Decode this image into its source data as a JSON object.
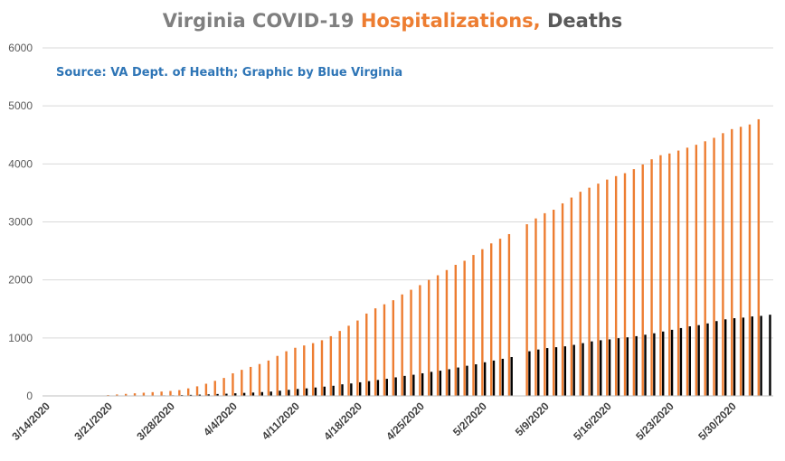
{
  "chart_data": {
    "type": "bar",
    "title_parts": [
      {
        "text": "Virginia COVID-19 ",
        "color": "#7f7f7f"
      },
      {
        "text": "Hospitalizations,",
        "color": "#ed7d31"
      },
      {
        "text": " Deaths",
        "color": "#595959"
      }
    ],
    "subtitle": "Source: VA Dept. of Health; Graphic by Blue Virginia",
    "subtitle_color": "#2e75b6",
    "ylim": [
      0,
      6000
    ],
    "yticks": [
      0,
      1000,
      2000,
      3000,
      4000,
      5000,
      6000
    ],
    "grid": true,
    "legend": "none",
    "x": [
      "3/14/2020",
      "3/15/2020",
      "3/16/2020",
      "3/17/2020",
      "3/18/2020",
      "3/19/2020",
      "3/20/2020",
      "3/21/2020",
      "3/22/2020",
      "3/23/2020",
      "3/24/2020",
      "3/25/2020",
      "3/26/2020",
      "3/27/2020",
      "3/28/2020",
      "3/29/2020",
      "3/30/2020",
      "3/31/2020",
      "4/1/2020",
      "4/2/2020",
      "4/3/2020",
      "4/4/2020",
      "4/5/2020",
      "4/6/2020",
      "4/7/2020",
      "4/8/2020",
      "4/9/2020",
      "4/10/2020",
      "4/11/2020",
      "4/12/2020",
      "4/13/2020",
      "4/14/2020",
      "4/15/2020",
      "4/16/2020",
      "4/17/2020",
      "4/18/2020",
      "4/19/2020",
      "4/20/2020",
      "4/21/2020",
      "4/22/2020",
      "4/23/2020",
      "4/24/2020",
      "4/25/2020",
      "4/26/2020",
      "4/27/2020",
      "4/28/2020",
      "4/29/2020",
      "4/30/2020",
      "5/1/2020",
      "5/2/2020",
      "5/3/2020",
      "5/4/2020",
      "5/5/2020",
      "5/6/2020",
      "5/7/2020",
      "5/8/2020",
      "5/9/2020",
      "5/10/2020",
      "5/11/2020",
      "5/12/2020",
      "5/13/2020",
      "5/14/2020",
      "5/15/2020",
      "5/16/2020",
      "5/17/2020",
      "5/18/2020",
      "5/19/2020",
      "5/20/2020",
      "5/21/2020",
      "5/22/2020",
      "5/23/2020",
      "5/24/2020",
      "5/25/2020",
      "5/26/2020",
      "5/27/2020",
      "5/28/2020",
      "5/29/2020",
      "5/30/2020",
      "5/31/2020",
      "6/1/2020",
      "6/2/2020",
      "6/3/2020"
    ],
    "xtick_labels": [
      "3/14/2020",
      "3/21/2020",
      "3/28/2020",
      "4/4/2020",
      "4/11/2020",
      "4/18/2020",
      "4/25/2020",
      "5/2/2020",
      "5/9/2020",
      "5/16/2020",
      "5/23/2020",
      "5/30/2020"
    ],
    "series": [
      {
        "color": "#ed7d31",
        "values": [
          null,
          null,
          null,
          null,
          null,
          null,
          null,
          15,
          25,
          35,
          45,
          55,
          65,
          75,
          85,
          100,
          130,
          165,
          210,
          260,
          310,
          390,
          450,
          500,
          550,
          610,
          690,
          770,
          830,
          870,
          910,
          960,
          1030,
          1120,
          1210,
          1300,
          1420,
          1510,
          1580,
          1650,
          1750,
          1830,
          1910,
          2000,
          2080,
          2170,
          2260,
          2330,
          2430,
          2530,
          2630,
          2710,
          2790,
          null,
          2960,
          3060,
          3150,
          3210,
          3320,
          3420,
          3520,
          3590,
          3660,
          3730,
          3790,
          3840,
          3910,
          3990,
          4080,
          4150,
          4180,
          4230,
          4280,
          4330,
          4390,
          4450,
          4530,
          4600,
          4640,
          4680,
          4770,
          null
        ]
      },
      {
        "color": "#000000",
        "values": [
          null,
          null,
          null,
          null,
          null,
          null,
          null,
          2,
          2,
          3,
          3,
          5,
          7,
          9,
          10,
          14,
          18,
          22,
          27,
          33,
          38,
          45,
          52,
          58,
          66,
          75,
          90,
          105,
          120,
          130,
          145,
          160,
          175,
          200,
          215,
          235,
          255,
          275,
          295,
          320,
          345,
          365,
          390,
          415,
          435,
          460,
          490,
          520,
          545,
          580,
          610,
          640,
          670,
          null,
          770,
          800,
          825,
          840,
          855,
          880,
          910,
          940,
          960,
          975,
          995,
          1010,
          1030,
          1055,
          1080,
          1110,
          1140,
          1170,
          1200,
          1220,
          1250,
          1290,
          1320,
          1340,
          1350,
          1370,
          1380,
          1400
        ]
      }
    ]
  }
}
